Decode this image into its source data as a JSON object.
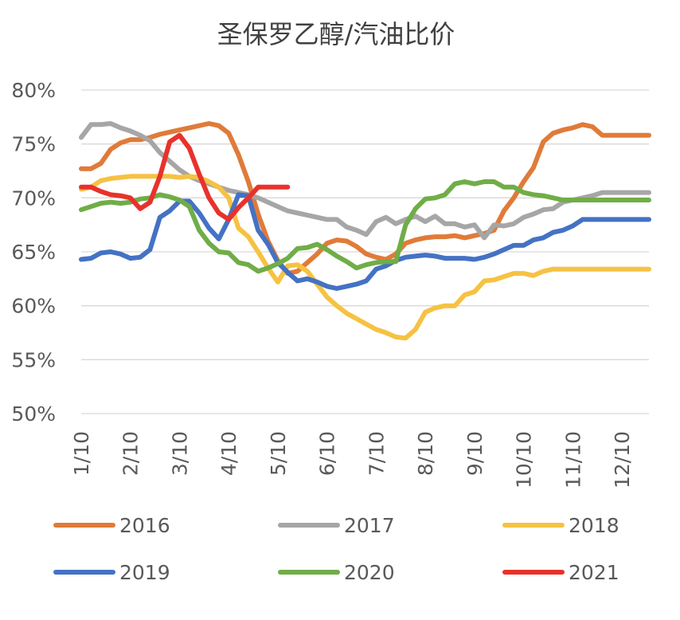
{
  "chart_data": {
    "type": "line",
    "title": "圣保罗乙醇/汽油比价",
    "xlabel": "",
    "ylabel": "",
    "y_tick_labels": [
      "50%",
      "55%",
      "60%",
      "65%",
      "70%",
      "75%",
      "80%"
    ],
    "y_ticks": [
      50,
      55,
      60,
      65,
      70,
      75,
      80
    ],
    "ylim": [
      50,
      80
    ],
    "x_tick_labels": [
      "1/10",
      "2/10",
      "3/10",
      "4/10",
      "5/10",
      "6/10",
      "7/10",
      "8/10",
      "9/10",
      "10/10",
      "11/10",
      "12/10"
    ],
    "xlim": [
      0,
      11.55
    ],
    "grid": true,
    "legend_position": "bottom",
    "series": [
      {
        "name": "2016",
        "color": "#E07B39",
        "x": [
          0,
          0.2,
          0.4,
          0.6,
          0.8,
          1.0,
          1.2,
          1.4,
          1.6,
          1.8,
          2.0,
          2.2,
          2.4,
          2.6,
          2.8,
          3.0,
          3.2,
          3.4,
          3.6,
          3.8,
          4.0,
          4.2,
          4.4,
          4.6,
          4.8,
          5.0,
          5.2,
          5.4,
          5.6,
          5.8,
          6.0,
          6.2,
          6.4,
          6.6,
          6.8,
          7.0,
          7.2,
          7.4,
          7.6,
          7.8,
          8.0,
          8.2,
          8.4,
          8.6,
          8.8,
          9.0,
          9.2,
          9.4,
          9.6,
          9.8,
          10.0,
          10.2,
          10.4,
          10.6,
          10.8,
          11.0,
          11.2,
          11.4,
          11.55
        ],
        "values": [
          72.7,
          72.7,
          73.2,
          74.5,
          75.1,
          75.4,
          75.4,
          75.6,
          75.9,
          76.1,
          76.3,
          76.5,
          76.7,
          76.9,
          76.7,
          76.0,
          74.0,
          71.5,
          68.5,
          66.0,
          64.2,
          63.0,
          63.2,
          64.0,
          64.8,
          65.8,
          66.1,
          66.0,
          65.5,
          64.8,
          64.5,
          64.3,
          64.8,
          65.8,
          66.1,
          66.3,
          66.4,
          66.4,
          66.5,
          66.3,
          66.5,
          66.7,
          67.0,
          68.8,
          70.0,
          71.5,
          72.8,
          75.2,
          76.0,
          76.3,
          76.5,
          76.8,
          76.6,
          75.8,
          75.8,
          75.8,
          75.8,
          75.8,
          75.8
        ]
      },
      {
        "name": "2017",
        "color": "#A6A6A6",
        "x": [
          0,
          0.2,
          0.4,
          0.6,
          0.8,
          1.0,
          1.2,
          1.4,
          1.6,
          1.8,
          2.0,
          2.2,
          2.4,
          2.6,
          2.8,
          3.0,
          3.2,
          3.4,
          3.6,
          3.8,
          4.0,
          4.2,
          4.4,
          4.6,
          4.8,
          5.0,
          5.2,
          5.4,
          5.6,
          5.8,
          6.0,
          6.2,
          6.4,
          6.6,
          6.8,
          7.0,
          7.2,
          7.4,
          7.6,
          7.8,
          8.0,
          8.2,
          8.4,
          8.6,
          8.8,
          9.0,
          9.2,
          9.4,
          9.6,
          9.8,
          10.0,
          10.2,
          10.4,
          10.6,
          10.8,
          11.0,
          11.2,
          11.4,
          11.55
        ],
        "values": [
          75.6,
          76.8,
          76.8,
          76.9,
          76.5,
          76.2,
          75.8,
          75.3,
          74.2,
          73.4,
          72.6,
          72.0,
          71.6,
          71.3,
          71.0,
          70.7,
          70.5,
          70.3,
          70.0,
          69.6,
          69.2,
          68.8,
          68.6,
          68.4,
          68.2,
          68.0,
          68.0,
          67.3,
          67.0,
          66.6,
          67.8,
          68.2,
          67.6,
          68.0,
          68.3,
          67.8,
          68.3,
          67.6,
          67.6,
          67.3,
          67.5,
          66.3,
          67.5,
          67.4,
          67.6,
          68.2,
          68.5,
          68.9,
          69.0,
          69.6,
          69.8,
          70.0,
          70.2,
          70.5,
          70.5,
          70.5,
          70.5,
          70.5,
          70.5
        ]
      },
      {
        "name": "2018",
        "color": "#F6C243",
        "x": [
          0,
          0.2,
          0.4,
          0.6,
          0.8,
          1.0,
          1.2,
          1.4,
          1.6,
          1.8,
          2.0,
          2.2,
          2.4,
          2.6,
          2.8,
          3.0,
          3.2,
          3.4,
          3.6,
          3.8,
          4.0,
          4.2,
          4.4,
          4.6,
          4.8,
          5.0,
          5.2,
          5.4,
          5.6,
          5.8,
          6.0,
          6.2,
          6.4,
          6.6,
          6.8,
          7.0,
          7.2,
          7.4,
          7.6,
          7.8,
          8.0,
          8.2,
          8.4,
          8.6,
          8.8,
          9.0,
          9.2,
          9.4,
          9.6,
          9.8,
          10.0,
          10.2,
          10.4,
          10.6,
          10.8,
          11.0,
          11.2,
          11.4,
          11.55
        ],
        "values": [
          70.8,
          71.0,
          71.6,
          71.8,
          71.9,
          72.0,
          72.0,
          72.0,
          72.0,
          72.0,
          71.9,
          72.0,
          71.9,
          71.5,
          71.0,
          70.0,
          67.2,
          66.4,
          65.0,
          63.5,
          62.2,
          63.7,
          63.8,
          63.2,
          62.0,
          60.8,
          60.0,
          59.3,
          58.8,
          58.3,
          57.8,
          57.5,
          57.1,
          57.0,
          57.8,
          59.4,
          59.8,
          60.0,
          60.0,
          61.0,
          61.3,
          62.3,
          62.4,
          62.7,
          63.0,
          63.0,
          62.8,
          63.2,
          63.4,
          63.4,
          63.4,
          63.4,
          63.4,
          63.4,
          63.4,
          63.4,
          63.4,
          63.4,
          63.4
        ]
      },
      {
        "name": "2019",
        "color": "#4472C4",
        "x": [
          0,
          0.2,
          0.4,
          0.6,
          0.8,
          1.0,
          1.2,
          1.4,
          1.6,
          1.8,
          2.0,
          2.2,
          2.4,
          2.6,
          2.8,
          3.0,
          3.2,
          3.4,
          3.6,
          3.8,
          4.0,
          4.2,
          4.4,
          4.6,
          4.8,
          5.0,
          5.2,
          5.4,
          5.6,
          5.8,
          6.0,
          6.2,
          6.4,
          6.6,
          6.8,
          7.0,
          7.2,
          7.4,
          7.6,
          7.8,
          8.0,
          8.2,
          8.4,
          8.6,
          8.8,
          9.0,
          9.2,
          9.4,
          9.6,
          9.8,
          10.0,
          10.2,
          10.4,
          10.6,
          10.8,
          11.0,
          11.2,
          11.4,
          11.55
        ],
        "values": [
          64.3,
          64.4,
          64.9,
          65.0,
          64.8,
          64.4,
          64.5,
          65.2,
          68.2,
          68.8,
          69.7,
          69.7,
          68.6,
          67.2,
          66.2,
          68.0,
          70.3,
          70.2,
          67.0,
          65.7,
          64.0,
          63.1,
          62.3,
          62.5,
          62.2,
          61.8,
          61.6,
          61.8,
          62.0,
          62.3,
          63.4,
          63.7,
          64.2,
          64.5,
          64.6,
          64.7,
          64.6,
          64.4,
          64.4,
          64.4,
          64.3,
          64.5,
          64.8,
          65.2,
          65.6,
          65.6,
          66.1,
          66.3,
          66.8,
          67.0,
          67.4,
          68.0,
          68.0,
          68.0,
          68.0,
          68.0,
          68.0,
          68.0,
          68.0
        ]
      },
      {
        "name": "2020",
        "color": "#70AD47",
        "x": [
          0,
          0.2,
          0.4,
          0.6,
          0.8,
          1.0,
          1.2,
          1.4,
          1.6,
          1.8,
          2.0,
          2.2,
          2.4,
          2.6,
          2.8,
          3.0,
          3.2,
          3.4,
          3.6,
          3.8,
          4.0,
          4.2,
          4.4,
          4.6,
          4.8,
          5.0,
          5.2,
          5.4,
          5.6,
          5.8,
          6.0,
          6.2,
          6.4,
          6.6,
          6.8,
          7.0,
          7.2,
          7.4,
          7.6,
          7.8,
          8.0,
          8.2,
          8.4,
          8.6,
          8.8,
          9.0,
          9.2,
          9.4,
          9.6,
          9.8,
          10.0,
          10.2,
          10.4,
          10.6,
          10.8,
          11.0,
          11.2,
          11.4,
          11.55
        ],
        "values": [
          68.9,
          69.2,
          69.5,
          69.6,
          69.5,
          69.6,
          69.9,
          70.0,
          70.3,
          70.1,
          69.8,
          69.2,
          67.0,
          65.8,
          65.0,
          64.9,
          64.0,
          63.8,
          63.2,
          63.5,
          63.9,
          64.4,
          65.3,
          65.4,
          65.7,
          65.2,
          64.6,
          64.1,
          63.5,
          63.8,
          64.0,
          64.1,
          64.1,
          67.5,
          69.0,
          69.9,
          70.0,
          70.3,
          71.3,
          71.5,
          71.3,
          71.5,
          71.5,
          71.0,
          71.0,
          70.5,
          70.3,
          70.2,
          70.0,
          69.8,
          69.8,
          69.8,
          69.8,
          69.8,
          69.8,
          69.8,
          69.8,
          69.8,
          69.8
        ]
      },
      {
        "name": "2021",
        "color": "#E8322C",
        "x": [
          0,
          0.2,
          0.4,
          0.6,
          0.8,
          1.0,
          1.2,
          1.4,
          1.6,
          1.8,
          2.0,
          2.2,
          2.4,
          2.6,
          2.8,
          3.0,
          3.2,
          3.4,
          3.6,
          3.8,
          4.0,
          4.2
        ],
        "values": [
          71.0,
          71.0,
          70.6,
          70.3,
          70.2,
          70.0,
          69.0,
          69.6,
          72.0,
          75.2,
          75.8,
          74.6,
          72.2,
          70.0,
          68.6,
          68.0,
          69.1,
          70.0,
          71.0,
          71.0,
          71.0,
          71.0
        ]
      }
    ]
  }
}
